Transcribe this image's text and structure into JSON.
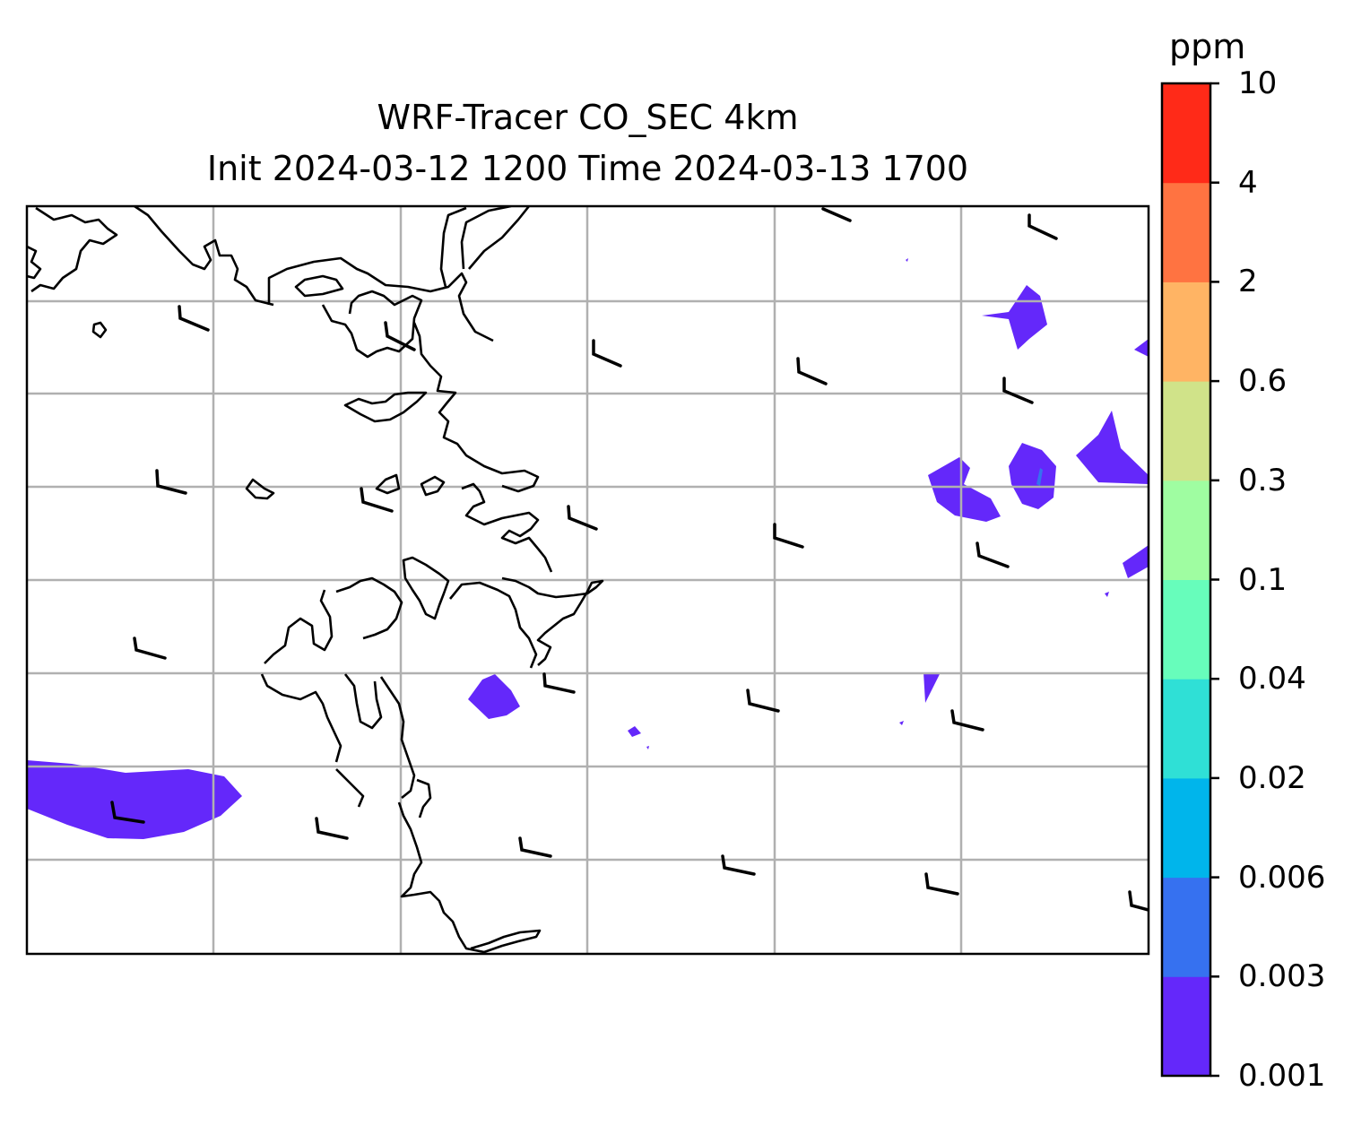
{
  "title": {
    "line1": "WRF-Tracer CO_SEC 4km",
    "line2": "Init 2024-03-12 1200 Time 2024-03-13 1700"
  },
  "colorbar": {
    "unit": "ppm",
    "levels": [
      "0.001",
      "0.003",
      "0.006",
      "0.02",
      "0.04",
      "0.1",
      "0.3",
      "0.6",
      "2",
      "4",
      "10"
    ],
    "colors": [
      "#6428fa",
      "#3671f0",
      "#00b5eb",
      "#2fe0d6",
      "#67fdbb",
      "#9ffda1",
      "#d0e389",
      "#ffb464",
      "#ff7341",
      "#ff2a18"
    ]
  },
  "map": {
    "coastline_color": "#000000",
    "gridline_color": "#b0b0b0",
    "plume_color": "#6428fa"
  }
}
